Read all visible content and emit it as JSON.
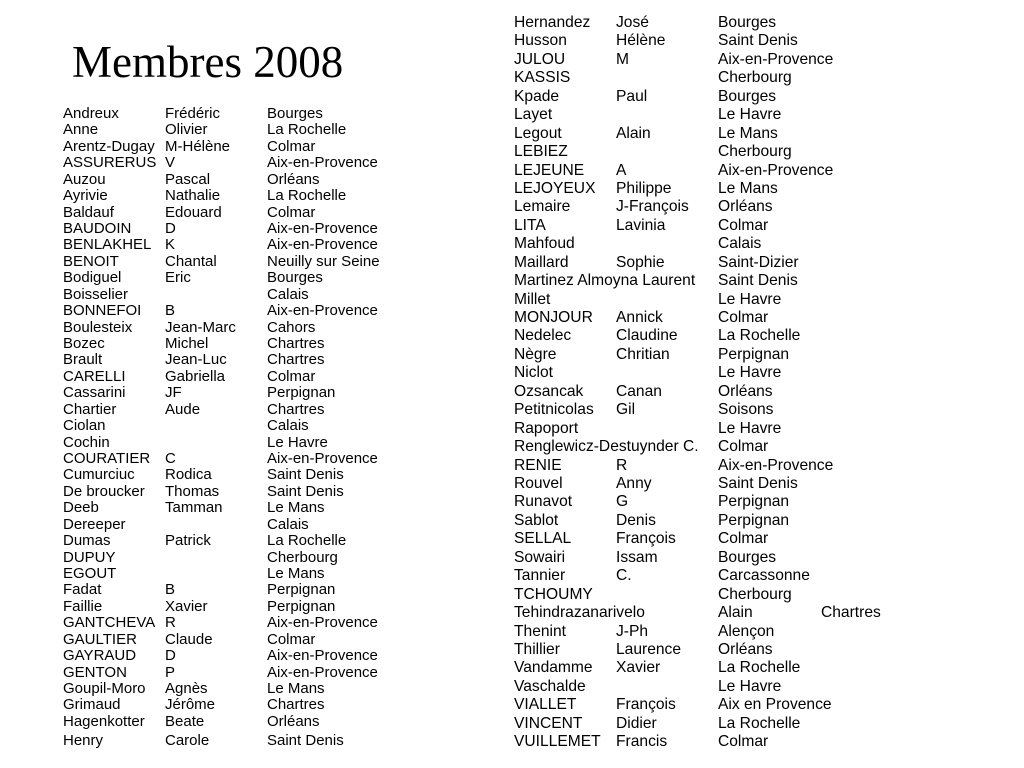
{
  "title": "Membres 2008",
  "left_members": [
    [
      "Andreux",
      "Frédéric",
      "Bourges"
    ],
    [
      "Anne",
      "Olivier",
      "La Rochelle"
    ],
    [
      "Arentz-Dugay",
      "M-Hélène",
      "Colmar"
    ],
    [
      "ASSURERUS",
      "V",
      "Aix-en-Provence"
    ],
    [
      "Auzou",
      "Pascal",
      "Orléans"
    ],
    [
      "Ayrivie",
      "Nathalie",
      "La Rochelle"
    ],
    [
      "Baldauf",
      "Edouard",
      "Colmar"
    ],
    [
      "BAUDOIN",
      "D",
      "Aix-en-Provence"
    ],
    [
      "BENLAKHEL",
      "K",
      "Aix-en-Provence"
    ],
    [
      "BENOIT",
      "Chantal",
      "Neuilly sur Seine"
    ],
    [
      "Bodiguel",
      "Eric",
      "Bourges"
    ],
    [
      "Boisselier",
      "",
      "Calais"
    ],
    [
      "BONNEFOI",
      "B",
      "Aix-en-Provence"
    ],
    [
      "Boulesteix",
      "Jean-Marc",
      "Cahors"
    ],
    [
      "Bozec",
      "Michel",
      "Chartres"
    ],
    [
      "Brault",
      "Jean-Luc",
      "Chartres"
    ],
    [
      "CARELLI",
      "Gabriella",
      "Colmar"
    ],
    [
      "Cassarini",
      "JF",
      "Perpignan"
    ],
    [
      "Chartier",
      "Aude",
      "Chartres"
    ],
    [
      "Ciolan",
      "",
      "Calais"
    ],
    [
      "Cochin",
      "",
      "Le Havre"
    ],
    [
      "COURATIER",
      "C",
      "Aix-en-Provence"
    ],
    [
      "Cumurciuc",
      "Rodica",
      "Saint Denis"
    ],
    [
      "De broucker",
      "Thomas",
      "Saint Denis"
    ],
    [
      "Deeb",
      "Tamman",
      "Le Mans"
    ],
    [
      "Dereeper",
      "",
      "Calais"
    ],
    [
      "Dumas",
      "Patrick",
      "La Rochelle"
    ],
    [
      "DUPUY",
      "",
      "Cherbourg"
    ],
    [
      "EGOUT",
      "",
      "Le Mans"
    ],
    [
      "Fadat",
      "B",
      "Perpignan"
    ],
    [
      "Faillie",
      "Xavier",
      "Perpignan"
    ],
    [
      "GANTCHEVA",
      "R",
      "Aix-en-Provence"
    ],
    [
      "GAULTIER",
      "Claude",
      "Colmar"
    ],
    [
      "GAYRAUD",
      "D",
      "Aix-en-Provence"
    ],
    [
      "GENTON",
      "P",
      "Aix-en-Provence"
    ],
    [
      "Goupil-Moro",
      "Agnès",
      "Le Mans"
    ],
    [
      "Grimaud",
      "Jérôme",
      "Chartres"
    ],
    [
      "Hagenkotter",
      "Beate",
      "Orléans"
    ],
    [
      "Henry",
      "Carole",
      "Saint Denis"
    ]
  ],
  "right_members": [
    [
      "Hernandez",
      "José",
      "Bourges"
    ],
    [
      "Husson",
      "Hélène",
      "Saint Denis"
    ],
    [
      "JULOU",
      "M",
      "Aix-en-Provence"
    ],
    [
      "KASSIS",
      "",
      "Cherbourg"
    ],
    [
      "Kpade",
      "Paul",
      "Bourges"
    ],
    [
      "Layet",
      "",
      "Le Havre"
    ],
    [
      "Legout",
      "Alain",
      "Le Mans"
    ],
    [
      "LEBIEZ",
      "",
      "Cherbourg"
    ],
    [
      "LEJEUNE",
      "A",
      "Aix-en-Provence"
    ],
    [
      "LEJOYEUX",
      "Philippe",
      "Le Mans"
    ],
    [
      "Lemaire",
      "J-François",
      "Orléans"
    ],
    [
      "LITA",
      "Lavinia",
      "Colmar"
    ],
    [
      "Mahfoud",
      "",
      "Calais"
    ],
    [
      "Maillard",
      "Sophie",
      "Saint-Dizier"
    ],
    [
      "Martinez Almoyna Laurent",
      "",
      "Saint Denis"
    ],
    [
      "Millet",
      "",
      "Le Havre"
    ],
    [
      "MONJOUR",
      "Annick",
      "Colmar"
    ],
    [
      "Nedelec",
      "Claudine",
      "La Rochelle"
    ],
    [
      "Nègre",
      "Chritian",
      "Perpignan"
    ],
    [
      "Niclot",
      "",
      "Le Havre"
    ],
    [
      "Ozsancak",
      "Canan",
      "Orléans"
    ],
    [
      "Petitnicolas",
      "Gil",
      "Soisons"
    ],
    [
      "Rapoport",
      "",
      "Le Havre"
    ],
    [
      "Renglewicz-Destuynder C.",
      "",
      "Colmar"
    ],
    [
      "RENIE",
      "R",
      "Aix-en-Provence"
    ],
    [
      "Rouvel",
      "Anny",
      "Saint Denis"
    ],
    [
      "Runavot",
      "G",
      "Perpignan"
    ],
    [
      "Sablot",
      "Denis",
      "Perpignan"
    ],
    [
      "SELLAL",
      "François",
      "Colmar"
    ],
    [
      "Sowairi",
      "Issam",
      "Bourges"
    ],
    [
      "Tannier",
      "C.",
      "Carcassonne"
    ],
    [
      "TCHOUMY",
      "",
      "Cherbourg"
    ],
    [
      "Tehindrazanarivelo",
      "",
      "Alain",
      "Chartres"
    ],
    [
      "Thenint",
      "J-Ph",
      "Alençon"
    ],
    [
      "Thillier",
      "Laurence",
      "Orléans"
    ],
    [
      "Vandamme",
      "Xavier",
      "La Rochelle"
    ],
    [
      "Vaschalde",
      "",
      "Le Havre"
    ],
    [
      "VIALLET",
      "François",
      "Aix en Provence"
    ],
    [
      "VINCENT",
      "Didier",
      "La Rochelle"
    ],
    [
      "VUILLEMET",
      "Francis",
      "Colmar"
    ]
  ]
}
